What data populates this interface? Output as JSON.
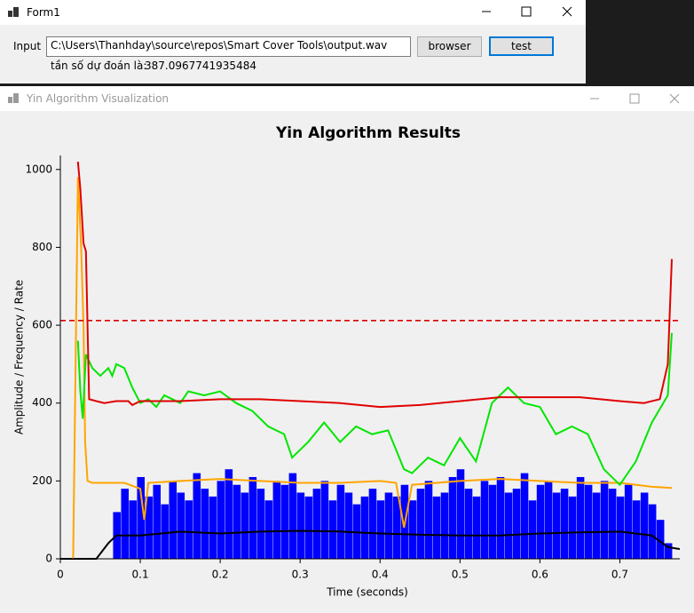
{
  "form1": {
    "title": "Form1",
    "input_label": "Input",
    "input_value": "C:\\Users\\Thanhday\\source\\repos\\Smart Cover Tools\\output.wav",
    "browse_button": "browser",
    "test_button": "test",
    "result_label": "tần số dự đoán là:",
    "result_value": "387.0967741935484"
  },
  "viz_window": {
    "title": "Yin Algorithm Visualization"
  },
  "chart_data": {
    "type": "combo",
    "title": "Yin Algorithm Results",
    "x_label": "Time (seconds)",
    "y_label": "Amplitude / Frequency / Rate",
    "xlim": [
      0,
      0.775
    ],
    "ylim": [
      0,
      1036
    ],
    "xticks": [
      0,
      0.1,
      0.2,
      0.3,
      0.4,
      0.5,
      0.6,
      0.7
    ],
    "yticks": [
      0,
      200,
      400,
      600,
      800,
      1000
    ],
    "grid": false,
    "hlines": [
      {
        "value": 612,
        "color": "#dc0000",
        "dashed": true
      }
    ],
    "series": [
      {
        "type": "bar",
        "color": "#0000ff",
        "x": [
          0.066,
          0.076,
          0.086,
          0.096,
          0.106,
          0.116,
          0.126,
          0.136,
          0.146,
          0.156,
          0.166,
          0.176,
          0.186,
          0.196,
          0.206,
          0.216,
          0.226,
          0.236,
          0.246,
          0.256,
          0.266,
          0.276,
          0.286,
          0.296,
          0.306,
          0.316,
          0.326,
          0.336,
          0.346,
          0.356,
          0.366,
          0.376,
          0.386,
          0.396,
          0.406,
          0.416,
          0.426,
          0.436,
          0.446,
          0.456,
          0.466,
          0.476,
          0.486,
          0.496,
          0.506,
          0.516,
          0.526,
          0.536,
          0.546,
          0.556,
          0.566,
          0.576,
          0.586,
          0.596,
          0.606,
          0.616,
          0.626,
          0.636,
          0.646,
          0.656,
          0.666,
          0.676,
          0.686,
          0.696,
          0.706,
          0.716,
          0.726,
          0.736,
          0.746,
          0.756
        ],
        "values": [
          120,
          180,
          150,
          210,
          160,
          190,
          140,
          200,
          170,
          150,
          220,
          180,
          160,
          200,
          230,
          190,
          170,
          210,
          180,
          150,
          200,
          190,
          220,
          170,
          160,
          180,
          200,
          150,
          190,
          170,
          140,
          160,
          180,
          150,
          170,
          160,
          190,
          150,
          180,
          200,
          160,
          170,
          210,
          230,
          180,
          160,
          200,
          190,
          210,
          170,
          180,
          220,
          150,
          190,
          200,
          170,
          180,
          160,
          210,
          190,
          170,
          200,
          180,
          160,
          190,
          150,
          170,
          140,
          100,
          40
        ]
      },
      {
        "type": "line",
        "color": "#000000",
        "x": [
          0.0,
          0.045,
          0.06,
          0.065,
          0.07,
          0.1,
          0.15,
          0.2,
          0.25,
          0.3,
          0.35,
          0.4,
          0.45,
          0.5,
          0.55,
          0.6,
          0.65,
          0.7,
          0.74,
          0.76,
          0.775
        ],
        "values": [
          0,
          0,
          40,
          50,
          60,
          60,
          70,
          65,
          70,
          72,
          70,
          65,
          62,
          60,
          60,
          65,
          68,
          70,
          60,
          30,
          25
        ]
      },
      {
        "type": "line",
        "color": "#ffa500",
        "x": [
          0.016,
          0.022,
          0.026,
          0.029,
          0.031,
          0.034,
          0.04,
          0.06,
          0.08,
          0.1,
          0.105,
          0.11,
          0.15,
          0.2,
          0.25,
          0.3,
          0.35,
          0.4,
          0.42,
          0.43,
          0.44,
          0.5,
          0.55,
          0.6,
          0.65,
          0.7,
          0.74,
          0.765
        ],
        "values": [
          0,
          980,
          800,
          600,
          300,
          200,
          195,
          195,
          195,
          180,
          100,
          195,
          200,
          205,
          200,
          195,
          195,
          200,
          195,
          80,
          190,
          200,
          205,
          200,
          195,
          195,
          185,
          182
        ]
      },
      {
        "type": "line",
        "color": "#00e600",
        "x": [
          0.022,
          0.025,
          0.028,
          0.032,
          0.04,
          0.05,
          0.06,
          0.065,
          0.07,
          0.08,
          0.09,
          0.1,
          0.11,
          0.12,
          0.13,
          0.15,
          0.16,
          0.18,
          0.2,
          0.22,
          0.24,
          0.26,
          0.28,
          0.29,
          0.31,
          0.33,
          0.35,
          0.37,
          0.39,
          0.41,
          0.42,
          0.43,
          0.44,
          0.46,
          0.48,
          0.5,
          0.52,
          0.54,
          0.56,
          0.58,
          0.6,
          0.62,
          0.64,
          0.66,
          0.68,
          0.7,
          0.72,
          0.74,
          0.76,
          0.765
        ],
        "values": [
          560,
          430,
          360,
          525,
          490,
          470,
          490,
          470,
          500,
          490,
          440,
          400,
          410,
          390,
          420,
          400,
          430,
          420,
          430,
          400,
          380,
          340,
          320,
          260,
          300,
          350,
          300,
          340,
          320,
          330,
          280,
          230,
          220,
          260,
          240,
          310,
          250,
          400,
          440,
          400,
          390,
          320,
          340,
          320,
          230,
          190,
          250,
          350,
          420,
          580
        ]
      },
      {
        "type": "line",
        "color": "#e00000",
        "x": [
          0.022,
          0.025,
          0.029,
          0.032,
          0.036,
          0.045,
          0.055,
          0.07,
          0.085,
          0.09,
          0.1,
          0.15,
          0.2,
          0.25,
          0.3,
          0.35,
          0.4,
          0.45,
          0.5,
          0.55,
          0.6,
          0.65,
          0.7,
          0.73,
          0.75,
          0.76,
          0.765
        ],
        "values": [
          1020,
          950,
          810,
          790,
          410,
          405,
          400,
          405,
          405,
          395,
          405,
          405,
          410,
          410,
          405,
          400,
          390,
          395,
          405,
          415,
          415,
          415,
          405,
          400,
          410,
          500,
          770
        ]
      }
    ]
  }
}
